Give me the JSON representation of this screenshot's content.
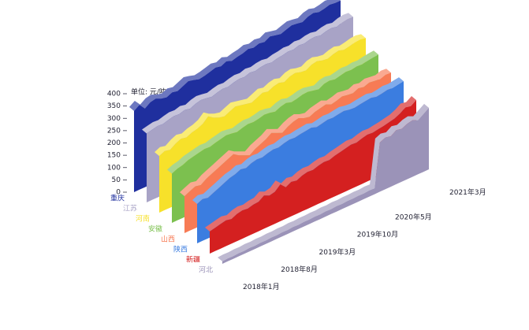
{
  "chart_data": {
    "type": "ribbon3d",
    "y_unit": "单位: 元/吨",
    "categories": [
      "2018年1月",
      null,
      null,
      null,
      null,
      null,
      null,
      "2018年8月",
      null,
      null,
      null,
      null,
      null,
      null,
      "2019年3月",
      null,
      null,
      null,
      null,
      null,
      null,
      "2019年10月",
      null,
      null,
      null,
      null,
      null,
      null,
      "2020年5月",
      null,
      null,
      null,
      null,
      null,
      null,
      null,
      null,
      null,
      "2021年3月"
    ],
    "ylim": [
      0,
      400
    ],
    "yticks": [
      0,
      50,
      100,
      150,
      200,
      250,
      300,
      350,
      400
    ],
    "series": [
      {
        "name": "重庆",
        "color": "#1f2f9e",
        "values": [
          330,
          345,
          320,
          335,
          340,
          330,
          325,
          335,
          330,
          340,
          350,
          345,
          338,
          342,
          348,
          355,
          350,
          360,
          352,
          358,
          362,
          370,
          365,
          372,
          368,
          380,
          375,
          370,
          378,
          385,
          382,
          378,
          390,
          395,
          388,
          392,
          398,
          395,
          395
        ]
      },
      {
        "name": "江苏",
        "color": "#a8a3c6",
        "values": [
          280,
          285,
          290,
          288,
          295,
          300,
          298,
          305,
          300,
          310,
          315,
          312,
          308,
          315,
          320,
          318,
          325,
          330,
          328,
          335,
          332,
          338,
          340,
          336,
          342,
          345,
          350,
          348,
          355,
          352,
          358,
          360,
          355,
          362,
          365,
          360,
          368,
          372,
          370
        ]
      },
      {
        "name": "河南",
        "color": "#f7e12a",
        "values": [
          230,
          240,
          235,
          250,
          260,
          255,
          265,
          270,
          280,
          300,
          285,
          275,
          270,
          280,
          290,
          285,
          280,
          275,
          285,
          295,
          290,
          300,
          305,
          298,
          310,
          315,
          308,
          305,
          318,
          322,
          315,
          312,
          320,
          325,
          318,
          322,
          328,
          330,
          325
        ]
      },
      {
        "name": "安徽",
        "color": "#7cc04f",
        "values": [
          200,
          210,
          215,
          225,
          230,
          235,
          240,
          238,
          245,
          250,
          255,
          252,
          248,
          255,
          260,
          258,
          262,
          268,
          265,
          260,
          270,
          275,
          268,
          272,
          278,
          280,
          275,
          270,
          282,
          285,
          280,
          285,
          290,
          288,
          292,
          290,
          295,
          298,
          300
        ]
      },
      {
        "name": "山西",
        "color": "#f77b55",
        "values": [
          150,
          160,
          170,
          165,
          180,
          190,
          200,
          210,
          220,
          230,
          215,
          205,
          195,
          210,
          220,
          230,
          245,
          235,
          225,
          240,
          250,
          255,
          245,
          240,
          250,
          255,
          260,
          250,
          255,
          262,
          258,
          255,
          265,
          260,
          268,
          265,
          262,
          270,
          268
        ]
      },
      {
        "name": "陕西",
        "color": "#3b7de0",
        "values": [
          160,
          170,
          165,
          175,
          185,
          195,
          205,
          210,
          220,
          215,
          225,
          230,
          228,
          235,
          240,
          238,
          245,
          250,
          248,
          252,
          255,
          258,
          250,
          255,
          260,
          258,
          262,
          265,
          260,
          258,
          262,
          265,
          268,
          262,
          265,
          270,
          268,
          272,
          275
        ]
      },
      {
        "name": "新疆",
        "color": "#d42020",
        "values": [
          90,
          95,
          100,
          105,
          100,
          110,
          115,
          112,
          118,
          120,
          135,
          125,
          130,
          150,
          128,
          140,
          135,
          145,
          150,
          148,
          155,
          160,
          158,
          165,
          170,
          175,
          180,
          178,
          185,
          190,
          188,
          192,
          195,
          200,
          205,
          215,
          230,
          225,
          240
        ]
      },
      {
        "name": "河北",
        "color": "#9b93b8",
        "values": [
          10,
          12,
          11,
          13,
          12,
          14,
          13,
          15,
          14,
          16,
          15,
          17,
          16,
          18,
          17,
          19,
          18,
          20,
          19,
          21,
          20,
          22,
          21,
          23,
          22,
          24,
          23,
          25,
          24,
          200,
          210,
          205,
          220,
          215,
          225,
          230,
          220,
          235,
          250
        ]
      }
    ]
  }
}
